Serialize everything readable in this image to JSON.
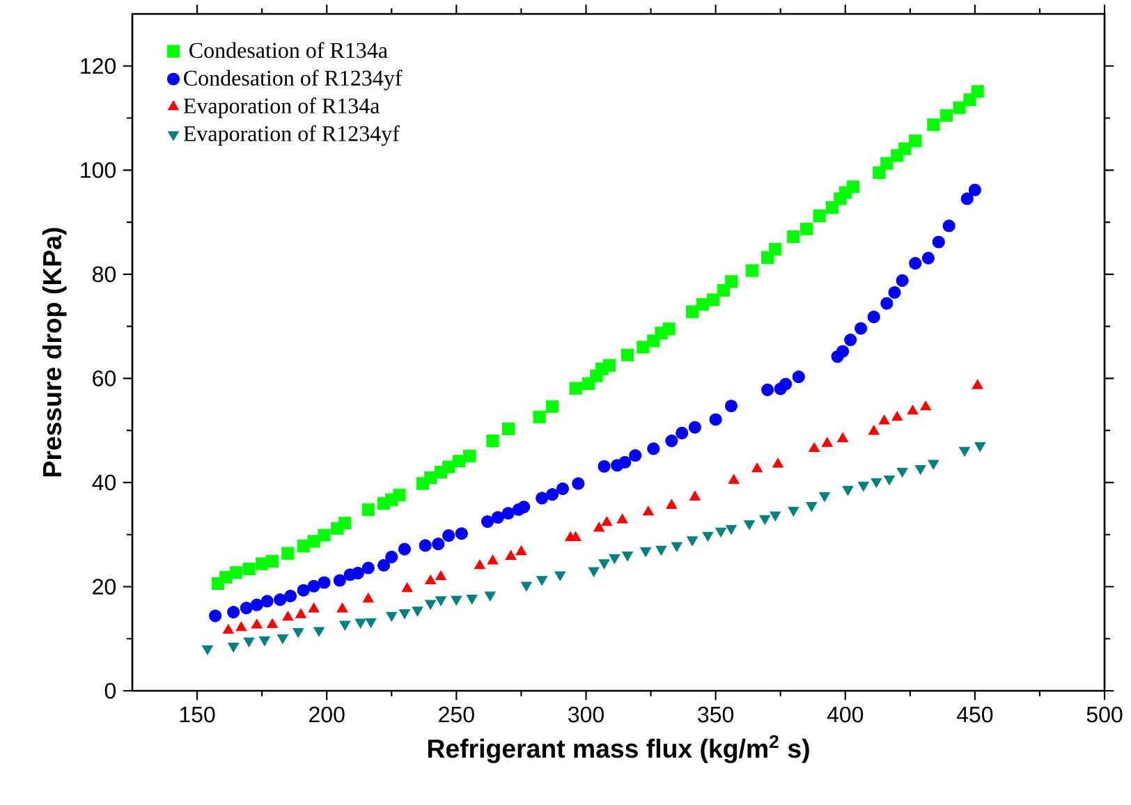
{
  "chart_data": {
    "type": "scatter",
    "xlabel": "Refrigerant mass flux (kg/m$^{2}$ s)",
    "ylabel": "Pressure drop (KPa)",
    "xlim": [
      125,
      500
    ],
    "ylim": [
      0,
      130
    ],
    "xticks": [
      150,
      200,
      250,
      300,
      350,
      400,
      450,
      500
    ],
    "yticks": [
      0,
      20,
      40,
      60,
      80,
      100,
      120
    ],
    "grid": false,
    "legend": "top left",
    "series": [
      {
        "name": " Condesation of R134a",
        "color": "#00ff00",
        "marker": "square",
        "x": [
          158,
          161,
          165,
          170,
          175,
          179,
          185,
          191,
          195,
          199,
          204,
          207,
          216,
          222,
          225,
          228,
          237,
          240,
          244,
          247,
          251,
          255,
          264,
          270,
          282,
          287,
          296,
          301,
          304,
          306,
          309,
          316,
          322,
          326,
          329,
          332,
          341,
          345,
          349,
          353,
          356,
          364,
          370,
          373,
          380,
          385,
          390,
          395,
          398,
          400,
          403,
          413,
          416,
          420,
          423,
          427,
          434,
          439,
          444,
          448,
          451
        ],
        "values": [
          20.6,
          21.8,
          22.7,
          23.4,
          24.4,
          24.9,
          26.4,
          27.8,
          28.7,
          29.9,
          31.2,
          32.2,
          34.8,
          36.0,
          36.7,
          37.6,
          39.8,
          40.9,
          42.0,
          43.0,
          44.1,
          45.1,
          48.0,
          50.3,
          52.6,
          54.6,
          58.1,
          59.0,
          60.5,
          61.8,
          62.5,
          64.5,
          66.0,
          67.2,
          68.7,
          69.5,
          72.8,
          74.2,
          75.1,
          76.9,
          78.6,
          80.7,
          83.2,
          84.8,
          87.2,
          88.7,
          91.2,
          92.8,
          94.5,
          95.7,
          96.8,
          99.5,
          101.3,
          102.8,
          104.1,
          105.6,
          108.7,
          110.5,
          112.0,
          113.5,
          115.1
        ]
      },
      {
        "name": "Condesation of  R1234yf",
        "color": "#0000ff",
        "marker": "circle",
        "x": [
          157,
          164,
          169,
          173,
          177,
          182,
          186,
          191,
          195,
          199,
          205,
          209,
          212,
          216,
          222,
          225,
          230,
          238,
          243,
          247,
          252,
          262,
          266,
          270,
          274,
          276,
          283,
          287,
          291,
          297,
          307,
          312,
          315,
          319,
          326,
          333,
          337,
          342,
          350,
          356,
          370,
          375,
          377,
          382,
          397,
          399,
          402,
          406,
          411,
          416,
          419,
          422,
          427,
          432,
          436,
          440,
          447,
          450
        ],
        "values": [
          14.4,
          15.1,
          15.9,
          16.5,
          17.2,
          17.5,
          18.2,
          19.3,
          20.1,
          20.8,
          21.2,
          22.3,
          22.6,
          23.6,
          24.1,
          25.7,
          27.2,
          27.9,
          28.2,
          29.8,
          30.2,
          32.5,
          33.3,
          34.1,
          34.8,
          35.3,
          37.0,
          37.7,
          38.8,
          39.8,
          43.1,
          43.3,
          43.9,
          45.2,
          46.5,
          48.0,
          49.5,
          50.6,
          52.1,
          54.7,
          57.8,
          58.0,
          58.9,
          60.3,
          64.2,
          65.2,
          67.4,
          69.6,
          71.8,
          74.4,
          76.5,
          78.8,
          82.1,
          83.1,
          86.2,
          89.3,
          94.5,
          96.2
        ]
      },
      {
        "name": "Evaporation of R134a",
        "color": "#ff0000",
        "marker": "triangle",
        "x": [
          162,
          167,
          173,
          179,
          185,
          190,
          195,
          206,
          216,
          231,
          240,
          244,
          259,
          264,
          271,
          275,
          294,
          296,
          305,
          308,
          314,
          324,
          333,
          342,
          357,
          366,
          374,
          388,
          393,
          399,
          411,
          415,
          420,
          426,
          431,
          451
        ],
        "values": [
          11.6,
          12.1,
          12.6,
          12.7,
          14.1,
          14.6,
          15.7,
          15.7,
          17.6,
          19.6,
          21.1,
          21.9,
          24.0,
          24.9,
          25.8,
          26.7,
          29.4,
          29.4,
          31.2,
          32.3,
          32.8,
          34.3,
          35.6,
          37.2,
          40.4,
          42.6,
          43.5,
          46.5,
          47.5,
          48.4,
          49.8,
          51.8,
          52.5,
          53.7,
          54.5,
          58.6
        ]
      },
      {
        "name": "Evaporation of  R1234yf",
        "color": "#008080",
        "marker": "triangle-down",
        "x": [
          154,
          164,
          170,
          176,
          183,
          189,
          197,
          207,
          213,
          217,
          225,
          230,
          235,
          240,
          244,
          250,
          256,
          263,
          277,
          283,
          290,
          303,
          307,
          311,
          316,
          323,
          329,
          335,
          341,
          347,
          352,
          356,
          363,
          369,
          373,
          380,
          387,
          392,
          401,
          407,
          412,
          417,
          422,
          429,
          434,
          446,
          452
        ],
        "values": [
          8.1,
          8.6,
          9.6,
          9.8,
          10.2,
          11.4,
          11.6,
          12.8,
          13.2,
          13.3,
          14.5,
          15.0,
          15.5,
          16.8,
          17.5,
          17.6,
          17.8,
          18.4,
          20.3,
          21.4,
          22.3,
          23.1,
          24.6,
          25.6,
          26.1,
          26.9,
          27.2,
          27.9,
          29.0,
          29.9,
          30.7,
          31.2,
          32.1,
          33.1,
          33.8,
          34.7,
          35.6,
          37.5,
          38.7,
          39.5,
          40.2,
          40.7,
          42.2,
          42.7,
          43.7,
          46.2,
          47.1
        ]
      }
    ]
  }
}
